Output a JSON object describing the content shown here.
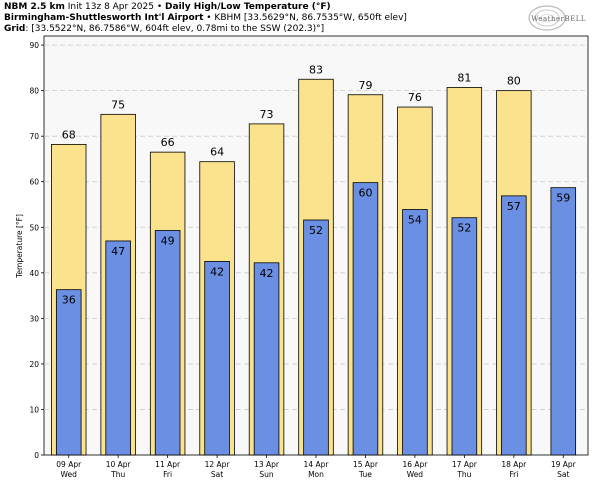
{
  "header": {
    "line1_bold": "NBM 2.5 km",
    "line1_mid": " Init 13z 8 Apr 2025 • ",
    "line1_title": "Daily High/Low Temperature (°F)",
    "line2_bold": "Birmingham-Shuttlesworth Int'l Airport",
    "line2_rest": " • KBHM [33.5629°N, 86.7535°W, 650ft elev]",
    "line3_bold": "Grid",
    "line3_rest": ": [33.5522°N, 86.7586°W, 604ft elev, 0.78mi to the SSW (202.3)°]"
  },
  "logo": {
    "text": "WeatherBELL",
    "icon": "swirl-logo-icon"
  },
  "colors": {
    "high": "#fbe38e",
    "low": "#6b8fe3",
    "grid": "#cccccc",
    "bg": "#f8f8f8"
  },
  "chart_data": {
    "type": "bar",
    "ylabel": "Temperature [°F]",
    "ylim": [
      0,
      92
    ],
    "yticks": [
      0,
      10,
      20,
      30,
      40,
      50,
      60,
      70,
      80,
      90
    ],
    "categories": [
      [
        "09 Apr",
        "Wed"
      ],
      [
        "10 Apr",
        "Thu"
      ],
      [
        "11 Apr",
        "Fri"
      ],
      [
        "12 Apr",
        "Sat"
      ],
      [
        "13 Apr",
        "Sun"
      ],
      [
        "14 Apr",
        "Mon"
      ],
      [
        "15 Apr",
        "Tue"
      ],
      [
        "16 Apr",
        "Wed"
      ],
      [
        "17 Apr",
        "Thu"
      ],
      [
        "18 Apr",
        "Fri"
      ],
      [
        "19 Apr",
        "Sat"
      ]
    ],
    "series": [
      {
        "values": [
          68.2,
          74.8,
          66.5,
          64.4,
          72.7,
          82.5,
          79.1,
          76.4,
          80.7,
          80.0,
          null
        ],
        "labels": [
          "68",
          "75",
          "66",
          "64",
          "73",
          "83",
          "79",
          "76",
          "81",
          "80",
          ""
        ]
      },
      {
        "values": [
          36.3,
          47.0,
          49.3,
          42.5,
          42.2,
          51.6,
          59.8,
          53.9,
          52.1,
          56.9,
          58.7
        ],
        "labels": [
          "36",
          "47",
          "49",
          "42",
          "42",
          "52",
          "60",
          "54",
          "52",
          "57",
          "59"
        ]
      }
    ],
    "grid": true
  }
}
